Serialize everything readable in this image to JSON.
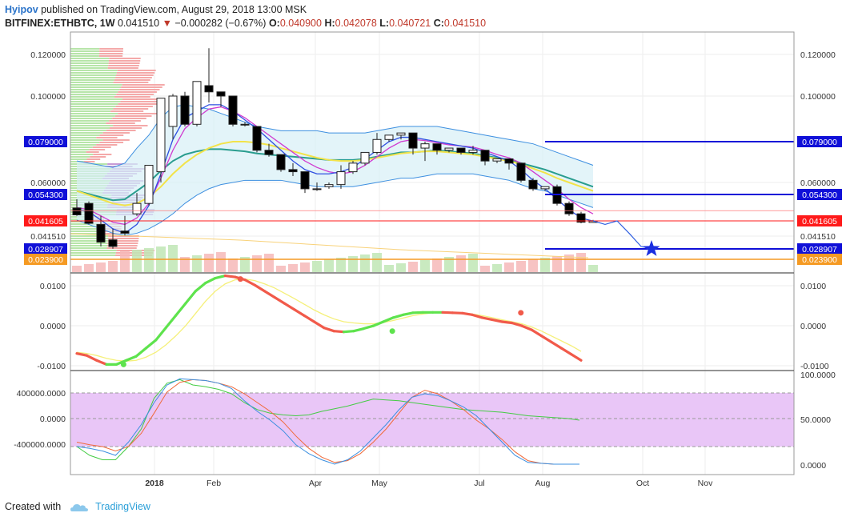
{
  "header": {
    "user": "Hyipov",
    "published": "published on TradingView.com, August 29, 2018 13:00 MSK",
    "symbol": "BITFINEX:ETHBTC, 1W",
    "last": "0.041510",
    "change": "−0.000282 (−0.67%)",
    "o_label": "O:",
    "o": "0.040900",
    "h_label": "H:",
    "h": "0.042078",
    "l_label": "L:",
    "l": "0.040721",
    "c_label": "C:",
    "c": "0.041510"
  },
  "footer": {
    "created": "Created with",
    "brand": "TradingView"
  },
  "colors": {
    "up": "#ffffff",
    "down": "#000000",
    "bb_band": "#3d8fe0",
    "bb_fill": "#d7f0f7",
    "mid": "#2a9d8f",
    "ma_yellow": "#f2e34a",
    "ma_magenta": "#d03ad0",
    "ma_blue": "#2f4fe0",
    "level": "#1010d8",
    "orange": "#f59a23",
    "red": "#ff1a1a",
    "macd_up": "#5ee34d",
    "macd_down": "#f15a4a",
    "signal": "#f5f079",
    "stoch_band": "#e9c6f7"
  },
  "chart_data": {
    "type": "candlestick",
    "x_labels": [
      "2018",
      "Feb",
      "Apr",
      "May",
      "Jul",
      "Aug",
      "Oct",
      "Nov"
    ],
    "price_axis_ticks": [
      "0.120000",
      "0.100000",
      "0.060000",
      "0.041510"
    ],
    "candles": [
      [
        0.0478,
        0.052,
        0.0445,
        0.044
      ],
      [
        0.05,
        0.051,
        0.0405,
        0.04
      ],
      [
        0.04,
        0.044,
        0.032,
        0.03
      ],
      [
        0.033,
        0.038,
        0.03,
        0.029
      ],
      [
        0.037,
        0.044,
        0.036,
        0.035
      ],
      [
        0.045,
        0.055,
        0.05,
        0.044
      ],
      [
        0.05,
        0.062,
        0.068,
        0.049
      ],
      [
        0.065,
        0.08,
        0.099,
        0.06
      ],
      [
        0.086,
        0.101,
        0.1,
        0.08
      ],
      [
        0.1,
        0.102,
        0.087,
        0.086
      ],
      [
        0.087,
        0.105,
        0.107,
        0.086
      ],
      [
        0.105,
        0.123,
        0.102,
        0.097
      ],
      [
        0.102,
        0.102,
        0.1,
        0.095
      ],
      [
        0.1,
        0.1,
        0.087,
        0.086
      ],
      [
        0.087,
        0.088,
        0.087,
        0.086
      ],
      [
        0.086,
        0.086,
        0.075,
        0.074
      ],
      [
        0.075,
        0.078,
        0.073,
        0.072
      ],
      [
        0.073,
        0.073,
        0.066,
        0.065
      ],
      [
        0.066,
        0.069,
        0.065,
        0.063
      ],
      [
        0.065,
        0.065,
        0.057,
        0.055
      ],
      [
        0.057,
        0.06,
        0.057,
        0.056
      ],
      [
        0.058,
        0.06,
        0.059,
        0.057
      ],
      [
        0.059,
        0.068,
        0.065,
        0.057
      ],
      [
        0.065,
        0.07,
        0.069,
        0.064
      ],
      [
        0.069,
        0.071,
        0.074,
        0.068
      ],
      [
        0.074,
        0.083,
        0.08,
        0.073
      ],
      [
        0.08,
        0.082,
        0.082,
        0.079
      ],
      [
        0.082,
        0.083,
        0.083,
        0.08
      ],
      [
        0.083,
        0.083,
        0.076,
        0.073
      ],
      [
        0.076,
        0.079,
        0.078,
        0.07
      ],
      [
        0.078,
        0.078,
        0.075,
        0.073
      ],
      [
        0.075,
        0.076,
        0.076,
        0.074
      ],
      [
        0.076,
        0.076,
        0.074,
        0.073
      ],
      [
        0.074,
        0.077,
        0.075,
        0.073
      ],
      [
        0.075,
        0.075,
        0.07,
        0.068
      ],
      [
        0.07,
        0.071,
        0.071,
        0.069
      ],
      [
        0.071,
        0.071,
        0.069,
        0.066
      ],
      [
        0.069,
        0.069,
        0.061,
        0.06
      ],
      [
        0.061,
        0.062,
        0.057,
        0.056
      ],
      [
        0.057,
        0.058,
        0.058,
        0.056
      ],
      [
        0.058,
        0.059,
        0.05,
        0.049
      ],
      [
        0.05,
        0.051,
        0.045,
        0.044
      ],
      [
        0.045,
        0.046,
        0.041,
        0.0405
      ],
      [
        0.0409,
        0.0421,
        0.0415,
        0.0407
      ]
    ],
    "bollinger_upper": [
      0.07,
      0.069,
      0.068,
      0.067,
      0.069,
      0.076,
      0.082,
      0.09,
      0.095,
      0.096,
      0.095,
      0.094,
      0.092,
      0.09,
      0.088,
      0.086,
      0.085,
      0.084,
      0.084,
      0.084,
      0.084,
      0.083,
      0.083,
      0.083,
      0.083,
      0.084,
      0.085,
      0.086,
      0.086,
      0.086,
      0.086,
      0.085,
      0.084,
      0.083,
      0.082,
      0.081,
      0.08,
      0.079,
      0.078,
      0.076,
      0.074,
      0.072,
      0.07,
      0.068
    ],
    "bollinger_lower": [
      0.042,
      0.04,
      0.038,
      0.036,
      0.035,
      0.036,
      0.038,
      0.041,
      0.045,
      0.05,
      0.054,
      0.057,
      0.059,
      0.06,
      0.061,
      0.061,
      0.061,
      0.061,
      0.06,
      0.059,
      0.058,
      0.058,
      0.058,
      0.058,
      0.059,
      0.06,
      0.061,
      0.062,
      0.062,
      0.063,
      0.064,
      0.064,
      0.064,
      0.064,
      0.063,
      0.062,
      0.061,
      0.059,
      0.057,
      0.056,
      0.054,
      0.052,
      0.05,
      0.048
    ],
    "bollinger_mid": [
      0.056,
      0.0545,
      0.053,
      0.0515,
      0.052,
      0.056,
      0.06,
      0.0655,
      0.07,
      0.073,
      0.0745,
      0.0755,
      0.0755,
      0.075,
      0.0745,
      0.0735,
      0.073,
      0.0725,
      0.072,
      0.0715,
      0.071,
      0.0705,
      0.0705,
      0.0705,
      0.071,
      0.072,
      0.073,
      0.074,
      0.074,
      0.0745,
      0.075,
      0.0745,
      0.074,
      0.0735,
      0.0725,
      0.0715,
      0.0705,
      0.069,
      0.0675,
      0.066,
      0.064,
      0.062,
      0.06,
      0.058
    ],
    "ma_yellow": [
      0.056,
      0.054,
      0.052,
      0.05,
      0.049,
      0.05,
      0.053,
      0.058,
      0.064,
      0.069,
      0.073,
      0.076,
      0.078,
      0.079,
      0.079,
      0.0785,
      0.0775,
      0.076,
      0.0745,
      0.073,
      0.0715,
      0.0705,
      0.07,
      0.07,
      0.0705,
      0.0715,
      0.0725,
      0.0735,
      0.074,
      0.0745,
      0.0745,
      0.074,
      0.0735,
      0.073,
      0.072,
      0.071,
      0.07,
      0.0685,
      0.0665,
      0.0645,
      0.062,
      0.06,
      0.058,
      0.056
    ],
    "ma_magenta": [
      0.048,
      0.047,
      0.044,
      0.041,
      0.04,
      0.043,
      0.05,
      0.062,
      0.075,
      0.085,
      0.09,
      0.094,
      0.095,
      0.093,
      0.09,
      0.086,
      0.082,
      0.078,
      0.074,
      0.07,
      0.067,
      0.065,
      0.064,
      0.065,
      0.068,
      0.072,
      0.076,
      0.079,
      0.08,
      0.0795,
      0.0785,
      0.0775,
      0.077,
      0.0765,
      0.075,
      0.073,
      0.0715,
      0.069,
      0.065,
      0.061,
      0.057,
      0.052,
      0.048,
      0.045
    ],
    "ma_blue": [
      0.047,
      0.046,
      0.042,
      0.038,
      0.036,
      0.04,
      0.049,
      0.064,
      0.08,
      0.09,
      0.093,
      0.096,
      0.096,
      0.093,
      0.089,
      0.085,
      0.08,
      0.075,
      0.07,
      0.066,
      0.064,
      0.064,
      0.065,
      0.067,
      0.071,
      0.075,
      0.079,
      0.081,
      0.081,
      0.08,
      0.079,
      0.078,
      0.077,
      0.076,
      0.074,
      0.072,
      0.07,
      0.066,
      0.061,
      0.057,
      0.052,
      0.047,
      0.043,
      0.0415
    ],
    "projection": [
      [
        43,
        0.0416
      ],
      [
        44,
        0.04
      ],
      [
        45,
        0.0416
      ],
      [
        46,
        0.036
      ],
      [
        47,
        0.03
      ],
      [
        48,
        0.0289
      ]
    ],
    "levels": [
      {
        "value": 0.079,
        "label": "0.079000",
        "color": "#1010d8",
        "from": 39
      },
      {
        "value": 0.0543,
        "label": "0.054300",
        "color": "#1010d8",
        "from": 39
      },
      {
        "value": 0.041605,
        "label": "0.041605",
        "color": "#ff1a1a",
        "from": 0
      },
      {
        "value": 0.028907,
        "label": "0.028907",
        "color": "#1010d8",
        "from": 39
      },
      {
        "value": 0.0239,
        "label": "0.023900",
        "color": "#f59a23",
        "from": 0
      }
    ],
    "macd": {
      "ticks": [
        "0.0100",
        "0.0000",
        "-0.0100"
      ],
      "ylim": [
        -0.0115,
        0.0125
      ],
      "macd": [
        -0.0073,
        -0.0078,
        -0.009,
        -0.01,
        -0.01,
        -0.009,
        -0.008,
        -0.006,
        -0.004,
        -0.001,
        0.002,
        0.005,
        0.008,
        0.01,
        0.0112,
        0.0118,
        0.0115,
        0.0108,
        0.0095,
        0.008,
        0.0065,
        0.005,
        0.0035,
        0.002,
        0.0005,
        -0.001,
        -0.0018,
        -0.002,
        -0.0018,
        -0.0012,
        -0.0005,
        0.0005,
        0.0015,
        0.0022,
        0.0027,
        0.0028,
        0.0028,
        0.0028,
        0.0027,
        0.0026,
        0.0022,
        0.0015,
        0.001,
        0.0005,
        0.0002,
        -0.0005,
        -0.0015,
        -0.003,
        -0.0045,
        -0.006,
        -0.0075,
        -0.009
      ],
      "signal": [
        -0.007,
        -0.0073,
        -0.0078,
        -0.0085,
        -0.009,
        -0.0092,
        -0.009,
        -0.0082,
        -0.007,
        -0.0052,
        -0.003,
        -0.0005,
        0.0025,
        0.0055,
        0.008,
        0.0098,
        0.0108,
        0.011,
        0.0106,
        0.0098,
        0.0088,
        0.0075,
        0.0062,
        0.0048,
        0.0034,
        0.0022,
        0.0012,
        0.0005,
        0.0002,
        0.0,
        0.0,
        0.0003,
        0.0008,
        0.0014,
        0.002,
        0.0024,
        0.0027,
        0.0028,
        0.0028,
        0.0027,
        0.0024,
        0.002,
        0.0015,
        0.001,
        0.0005,
        0.0,
        -0.0008,
        -0.0018,
        -0.003,
        -0.0042,
        -0.0054,
        -0.0068
      ],
      "cross_points": [
        [
          4,
          -0.01,
          "#5ee34d"
        ],
        [
          14,
          0.011,
          "#f15a4a"
        ],
        [
          27,
          -0.0018,
          "#5ee34d"
        ],
        [
          38,
          0.0027,
          "#f15a4a"
        ]
      ]
    },
    "stoch": {
      "left_ticks": [
        "400000.0000",
        "0.0000",
        "-400000.0000"
      ],
      "right_ticks": [
        "100.0000",
        "50.0000",
        "0.0000"
      ],
      "blue": [
        20,
        18,
        15,
        10,
        25,
        45,
        70,
        90,
        97,
        96,
        95,
        92,
        86,
        72,
        60,
        50,
        38,
        22,
        12,
        5,
        0,
        5,
        15,
        30,
        45,
        62,
        76,
        80,
        78,
        72,
        65,
        55,
        40,
        25,
        10,
        2,
        1,
        0,
        0,
        0
      ],
      "red": [
        25,
        22,
        20,
        15,
        20,
        35,
        58,
        82,
        93,
        96,
        95,
        92,
        88,
        80,
        70,
        60,
        48,
        32,
        18,
        8,
        2,
        4,
        12,
        25,
        40,
        58,
        76,
        84,
        80,
        72,
        62,
        50,
        40,
        28,
        14,
        4,
        1,
        0,
        0,
        0
      ],
      "green": [
        20,
        10,
        5,
        5,
        20,
        40,
        75,
        92,
        96,
        90,
        88,
        85,
        80,
        70,
        62,
        58,
        56,
        55,
        56,
        60,
        63,
        66,
        70,
        74,
        73,
        72,
        70,
        68,
        66,
        64,
        62,
        61,
        60,
        59,
        57,
        55,
        54,
        53,
        52,
        50
      ]
    }
  }
}
